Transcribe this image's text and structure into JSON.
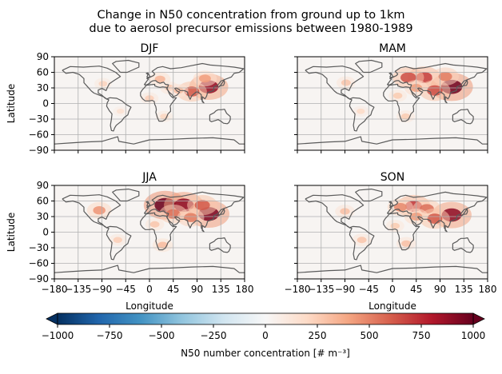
{
  "chart_data": {
    "type": "heatmap",
    "title_lines": [
      "Change in N50 concentration from ground up to 1km",
      "due to aerosol precursor emissions between 1980-1989"
    ],
    "xlabel": "Longitude",
    "ylabel": "Latitude",
    "xlim": [
      -180,
      180
    ],
    "ylim": [
      -90,
      90
    ],
    "xticks": [
      -180,
      -135,
      -90,
      -45,
      0,
      45,
      90,
      135,
      180
    ],
    "yticks": [
      90,
      60,
      30,
      0,
      -30,
      -60,
      -90
    ],
    "xtick_labels": [
      "−180",
      "−135",
      "−90",
      "−45",
      "0",
      "45",
      "90",
      "135",
      "180"
    ],
    "ytick_labels": [
      "90",
      "60",
      "30",
      "0",
      "−30",
      "−60",
      "−90"
    ],
    "grid": true,
    "colormap": "RdBu_r",
    "colorbar": {
      "label": "N50 number concentration [# m⁻³]",
      "range": [
        -1000,
        1000
      ],
      "extend": "both",
      "ticks": [
        -1000,
        -750,
        -500,
        -250,
        0,
        250,
        500,
        750,
        1000
      ],
      "tick_labels": [
        "−1000",
        "−750",
        "−500",
        "−250",
        "0",
        "250",
        "500",
        "750",
        "1000"
      ],
      "colors": [
        "#053061",
        "#2166ac",
        "#4393c3",
        "#92c5de",
        "#d1e5f0",
        "#f7f7f7",
        "#fddbc7",
        "#f4a582",
        "#d6604d",
        "#b2182b",
        "#67001f"
      ]
    },
    "panels": [
      {
        "name": "DJF",
        "hotspots": [
          {
            "lon": 112,
            "lat": 32,
            "value": 880
          },
          {
            "lon": 80,
            "lat": 23,
            "value": 620
          },
          {
            "lon": 105,
            "lat": 48,
            "value": 420
          },
          {
            "lon": 20,
            "lat": 47,
            "value": 340
          },
          {
            "lon": 38,
            "lat": 30,
            "value": 280
          },
          {
            "lon": -88,
            "lat": 38,
            "value": 230
          },
          {
            "lon": 0,
            "lat": 10,
            "value": 250
          },
          {
            "lon": -55,
            "lat": -15,
            "value": 160
          },
          {
            "lon": 28,
            "lat": -25,
            "value": 220
          },
          {
            "lon": 55,
            "lat": 25,
            "value": 300
          }
        ]
      },
      {
        "name": "MAM",
        "hotspots": [
          {
            "lon": 112,
            "lat": 32,
            "value": 980
          },
          {
            "lon": 60,
            "lat": 50,
            "value": 700
          },
          {
            "lon": 30,
            "lat": 50,
            "value": 650
          },
          {
            "lon": 80,
            "lat": 25,
            "value": 650
          },
          {
            "lon": 100,
            "lat": 52,
            "value": 520
          },
          {
            "lon": 45,
            "lat": 30,
            "value": 420
          },
          {
            "lon": -88,
            "lat": 40,
            "value": 280
          },
          {
            "lon": -60,
            "lat": -15,
            "value": 200
          },
          {
            "lon": 25,
            "lat": -25,
            "value": 260
          },
          {
            "lon": 10,
            "lat": 15,
            "value": 260
          }
        ]
      },
      {
        "name": "JJA",
        "hotspots": [
          {
            "lon": 30,
            "lat": 52,
            "value": 1000
          },
          {
            "lon": 65,
            "lat": 52,
            "value": 900
          },
          {
            "lon": 112,
            "lat": 35,
            "value": 950
          },
          {
            "lon": 100,
            "lat": 52,
            "value": 620
          },
          {
            "lon": 45,
            "lat": 35,
            "value": 560
          },
          {
            "lon": 78,
            "lat": 28,
            "value": 520
          },
          {
            "lon": -95,
            "lat": 42,
            "value": 450
          },
          {
            "lon": -60,
            "lat": -15,
            "value": 250
          },
          {
            "lon": 25,
            "lat": -25,
            "value": 320
          },
          {
            "lon": 10,
            "lat": 15,
            "value": 280
          }
        ]
      },
      {
        "name": "SON",
        "hotspots": [
          {
            "lon": 112,
            "lat": 33,
            "value": 900
          },
          {
            "lon": 40,
            "lat": 50,
            "value": 720
          },
          {
            "lon": 65,
            "lat": 45,
            "value": 560
          },
          {
            "lon": 80,
            "lat": 26,
            "value": 620
          },
          {
            "lon": 15,
            "lat": 48,
            "value": 480
          },
          {
            "lon": 45,
            "lat": 30,
            "value": 430
          },
          {
            "lon": -90,
            "lat": 40,
            "value": 300
          },
          {
            "lon": -58,
            "lat": -15,
            "value": 280
          },
          {
            "lon": 26,
            "lat": -22,
            "value": 300
          },
          {
            "lon": 5,
            "lat": 12,
            "value": 260
          }
        ]
      }
    ]
  }
}
